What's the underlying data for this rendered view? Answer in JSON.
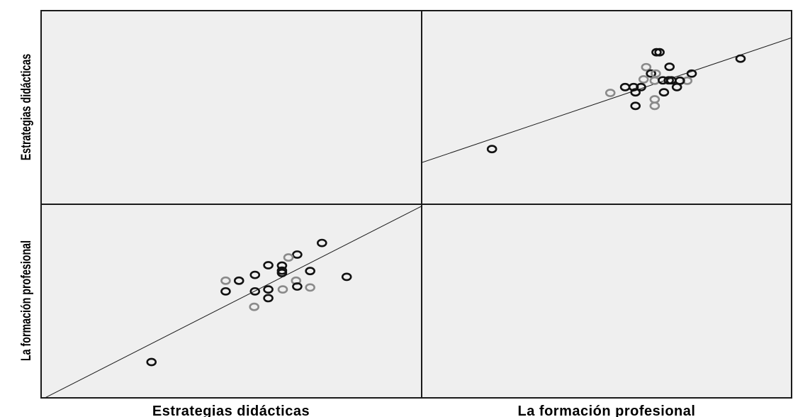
{
  "chart_data": {
    "type": "scatter",
    "layout": "matrix",
    "variables": [
      "Estrategias didácticas",
      "La formación profesional"
    ],
    "xlabels": [
      "Estrategias didácticas",
      "La formación profesional"
    ],
    "ylabels": [
      "Estrategias didácticas",
      "La formación profesional"
    ],
    "grid": false,
    "fit_line": true,
    "colors": {
      "panel_background": "#efefef",
      "frame": "#1a1a1a",
      "point_dark": "#111111",
      "point_light": "#8a8a8a"
    },
    "panels": [
      {
        "row": 0,
        "col": 1,
        "x_variable": "La formación profesional",
        "y_variable": "Estrategias didácticas",
        "xlim": [
          0,
          100
        ],
        "ylim": [
          0,
          100
        ],
        "fit": {
          "intercept": 21.5,
          "slope": 0.645
        },
        "points": [
          {
            "x": 19.0,
            "y": 28.5,
            "tone": "dark"
          },
          {
            "x": 63.5,
            "y": 78.5,
            "tone": "dark"
          },
          {
            "x": 64.3,
            "y": 78.5,
            "tone": "dark"
          },
          {
            "x": 67.0,
            "y": 71.0,
            "tone": "dark"
          },
          {
            "x": 60.7,
            "y": 70.8,
            "tone": "light"
          },
          {
            "x": 62.0,
            "y": 67.5,
            "tone": "dark"
          },
          {
            "x": 63.3,
            "y": 67.5,
            "tone": "light"
          },
          {
            "x": 60.0,
            "y": 64.5,
            "tone": "light"
          },
          {
            "x": 63.0,
            "y": 63.8,
            "tone": "light"
          },
          {
            "x": 65.2,
            "y": 64.0,
            "tone": "dark"
          },
          {
            "x": 66.8,
            "y": 64.0,
            "tone": "dark"
          },
          {
            "x": 67.5,
            "y": 64.0,
            "tone": "dark"
          },
          {
            "x": 73.0,
            "y": 67.5,
            "tone": "dark"
          },
          {
            "x": 71.8,
            "y": 63.8,
            "tone": "light"
          },
          {
            "x": 86.2,
            "y": 75.2,
            "tone": "dark"
          },
          {
            "x": 55.0,
            "y": 60.5,
            "tone": "dark"
          },
          {
            "x": 57.3,
            "y": 60.5,
            "tone": "dark"
          },
          {
            "x": 59.3,
            "y": 60.5,
            "tone": "dark"
          },
          {
            "x": 57.8,
            "y": 57.8,
            "tone": "dark"
          },
          {
            "x": 51.0,
            "y": 57.5,
            "tone": "light"
          },
          {
            "x": 69.8,
            "y": 63.8,
            "tone": "dark"
          },
          {
            "x": 69.0,
            "y": 60.5,
            "tone": "dark"
          },
          {
            "x": 65.5,
            "y": 57.8,
            "tone": "dark"
          },
          {
            "x": 63.0,
            "y": 54.2,
            "tone": "light"
          },
          {
            "x": 57.8,
            "y": 50.8,
            "tone": "dark"
          },
          {
            "x": 63.0,
            "y": 50.8,
            "tone": "light"
          }
        ]
      },
      {
        "row": 1,
        "col": 0,
        "x_variable": "Estrategias didácticas",
        "y_variable": "La formación profesional",
        "xlim": [
          0,
          100
        ],
        "ylim": [
          0,
          100
        ],
        "fit": {
          "intercept": -1.0,
          "slope": 1.0
        },
        "points": [
          {
            "x": 29.0,
            "y": 18.5,
            "tone": "dark"
          },
          {
            "x": 73.8,
            "y": 80.0,
            "tone": "dark"
          },
          {
            "x": 67.3,
            "y": 74.0,
            "tone": "dark"
          },
          {
            "x": 65.0,
            "y": 72.5,
            "tone": "light"
          },
          {
            "x": 59.7,
            "y": 68.5,
            "tone": "dark"
          },
          {
            "x": 63.3,
            "y": 68.3,
            "tone": "dark"
          },
          {
            "x": 63.3,
            "y": 65.7,
            "tone": "dark"
          },
          {
            "x": 70.7,
            "y": 65.5,
            "tone": "dark"
          },
          {
            "x": 63.3,
            "y": 64.5,
            "tone": "dark"
          },
          {
            "x": 56.2,
            "y": 63.5,
            "tone": "dark"
          },
          {
            "x": 52.0,
            "y": 60.5,
            "tone": "dark"
          },
          {
            "x": 48.5,
            "y": 60.5,
            "tone": "light"
          },
          {
            "x": 67.0,
            "y": 60.5,
            "tone": "light"
          },
          {
            "x": 80.3,
            "y": 62.5,
            "tone": "dark"
          },
          {
            "x": 48.5,
            "y": 55.0,
            "tone": "dark"
          },
          {
            "x": 56.2,
            "y": 55.0,
            "tone": "dark"
          },
          {
            "x": 59.7,
            "y": 56.0,
            "tone": "dark"
          },
          {
            "x": 63.5,
            "y": 56.0,
            "tone": "light"
          },
          {
            "x": 67.3,
            "y": 57.5,
            "tone": "dark"
          },
          {
            "x": 70.7,
            "y": 57.0,
            "tone": "light"
          },
          {
            "x": 59.7,
            "y": 51.5,
            "tone": "dark"
          },
          {
            "x": 56.0,
            "y": 47.0,
            "tone": "light"
          }
        ]
      }
    ]
  }
}
